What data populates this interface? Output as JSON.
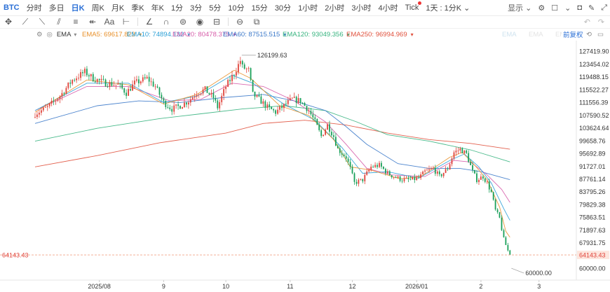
{
  "header": {
    "symbol": "BTC",
    "timeframes": [
      "分时",
      "多日",
      "日K",
      "周K",
      "月K",
      "季K",
      "年K",
      "1分",
      "3分",
      "5分",
      "10分",
      "15分",
      "30分",
      "1小时",
      "2小时",
      "3小时",
      "4小时",
      "Tick"
    ],
    "active_timeframe": "日K",
    "dot_timeframe": "Tick",
    "period_select": "1天 : 1分K",
    "display_label": "显示"
  },
  "indicator": {
    "name": "EMA",
    "items": [
      {
        "label": "EMA5: 69617.823",
        "color": "#e8902a"
      },
      {
        "label": "EMA10: 74894.132",
        "color": "#2a9fd6"
      },
      {
        "label": "EMA20: 80478.375",
        "color": "#d65aa8"
      },
      {
        "label": "EMA60: 87515.515",
        "color": "#3a78c9"
      },
      {
        "label": "EMA120: 93049.356",
        "color": "#35b37e"
      },
      {
        "label": "EMA250: 96994.969",
        "color": "#e0503c"
      }
    ],
    "faded": [
      "EMA",
      "EMA",
      "EMA"
    ],
    "adjust_label": "前复权"
  },
  "chart_data": {
    "type": "candlestick",
    "title": "",
    "y_ticks": [
      127419.9,
      123454.02,
      119488.15,
      115522.27,
      111556.39,
      107590.52,
      103624.64,
      99658.76,
      95692.89,
      91727.01,
      87761.14,
      83795.26,
      79829.38,
      75863.51,
      71897.63,
      67931.75,
      64143.43,
      60000.0
    ],
    "ylim": [
      58500,
      130300
    ],
    "x_ticks": [
      "2025/08",
      "9",
      "10",
      "11",
      "12",
      "2026/01",
      "2",
      "3"
    ],
    "x_tick_days": [
      31,
      62,
      92,
      123,
      153,
      184,
      215,
      243
    ],
    "x_start": "2025-07-01",
    "x_end": "2026-03-19",
    "last_price": 64143.43,
    "high_label": "126199.63",
    "low_label": "60000.00",
    "up_color": "#e0433a",
    "down_color": "#1aa05a",
    "ema_colors": {
      "ema10": "#2a9fd6",
      "ema20": "#d65aa8",
      "ema60": "#3a78c9",
      "ema120": "#35b37e",
      "ema250": "#e0503c"
    },
    "close_path": [
      [
        0,
        108000
      ],
      [
        6,
        110000
      ],
      [
        12,
        113500
      ],
      [
        18,
        118500
      ],
      [
        24,
        121000
      ],
      [
        28,
        119000
      ],
      [
        34,
        117500
      ],
      [
        40,
        117000
      ],
      [
        44,
        114500
      ],
      [
        48,
        117500
      ],
      [
        54,
        119000
      ],
      [
        58,
        116500
      ],
      [
        62,
        111500
      ],
      [
        66,
        109500
      ],
      [
        70,
        110500
      ],
      [
        74,
        112000
      ],
      [
        78,
        114500
      ],
      [
        82,
        115500
      ],
      [
        86,
        113000
      ],
      [
        88,
        110000
      ],
      [
        92,
        116500
      ],
      [
        96,
        120500
      ],
      [
        99,
        124500
      ],
      [
        100,
        122500
      ],
      [
        103,
        121500
      ],
      [
        105,
        114000
      ],
      [
        108,
        112500
      ],
      [
        112,
        110000
      ],
      [
        116,
        108500
      ],
      [
        120,
        110500
      ],
      [
        124,
        112500
      ],
      [
        128,
        112000
      ],
      [
        130,
        110500
      ],
      [
        132,
        109000
      ],
      [
        135,
        105500
      ],
      [
        138,
        101000
      ],
      [
        141,
        104500
      ],
      [
        144,
        101000
      ],
      [
        146,
        97000
      ],
      [
        150,
        94500
      ],
      [
        152,
        91000
      ],
      [
        154,
        86500
      ],
      [
        158,
        87500
      ],
      [
        162,
        91500
      ],
      [
        166,
        92000
      ],
      [
        170,
        89500
      ],
      [
        173,
        88500
      ],
      [
        177,
        87500
      ],
      [
        181,
        87500
      ],
      [
        185,
        88000
      ],
      [
        188,
        90000
      ],
      [
        192,
        91000
      ],
      [
        195,
        88500
      ],
      [
        199,
        91000
      ],
      [
        202,
        96000
      ],
      [
        205,
        97000
      ],
      [
        208,
        95500
      ],
      [
        211,
        90000
      ],
      [
        213,
        87500
      ],
      [
        216,
        88500
      ],
      [
        218,
        86500
      ],
      [
        220,
        83500
      ],
      [
        222,
        78000
      ],
      [
        224,
        75500
      ],
      [
        226,
        69000
      ],
      [
        228,
        65500
      ],
      [
        229,
        64143
      ]
    ],
    "ema_paths": {
      "ema250": [
        [
          0,
          91500
        ],
        [
          30,
          95000
        ],
        [
          60,
          99000
        ],
        [
          92,
          102000
        ],
        [
          110,
          105000
        ],
        [
          130,
          106000
        ],
        [
          150,
          104500
        ],
        [
          170,
          102000
        ],
        [
          190,
          100000
        ],
        [
          210,
          98800
        ],
        [
          229,
          96995
        ]
      ],
      "ema120": [
        [
          0,
          99500
        ],
        [
          30,
          103500
        ],
        [
          60,
          106500
        ],
        [
          80,
          108000
        ],
        [
          100,
          109500
        ],
        [
          120,
          110500
        ],
        [
          140,
          109000
        ],
        [
          155,
          105500
        ],
        [
          170,
          101500
        ],
        [
          190,
          99500
        ],
        [
          210,
          96800
        ],
        [
          229,
          93049
        ]
      ],
      "ema60": [
        [
          0,
          105000
        ],
        [
          30,
          110500
        ],
        [
          50,
          112000
        ],
        [
          70,
          111500
        ],
        [
          90,
          113000
        ],
        [
          110,
          114000
        ],
        [
          125,
          112000
        ],
        [
          140,
          109000
        ],
        [
          150,
          104000
        ],
        [
          160,
          98500
        ],
        [
          175,
          92500
        ],
        [
          190,
          91000
        ],
        [
          205,
          91000
        ],
        [
          215,
          90000
        ],
        [
          229,
          87516
        ]
      ],
      "ema20": [
        [
          0,
          109000
        ],
        [
          25,
          116500
        ],
        [
          45,
          116500
        ],
        [
          65,
          112000
        ],
        [
          80,
          112500
        ],
        [
          95,
          117500
        ],
        [
          110,
          116500
        ],
        [
          125,
          112000
        ],
        [
          140,
          105500
        ],
        [
          150,
          98500
        ],
        [
          160,
          91000
        ],
        [
          172,
          89000
        ],
        [
          188,
          88500
        ],
        [
          202,
          93500
        ],
        [
          210,
          93000
        ],
        [
          218,
          89000
        ],
        [
          225,
          84500
        ],
        [
          229,
          80478
        ]
      ],
      "ema10": [
        [
          0,
          109000
        ],
        [
          25,
          117500
        ],
        [
          45,
          117500
        ],
        [
          62,
          111500
        ],
        [
          78,
          113500
        ],
        [
          95,
          120000
        ],
        [
          105,
          117500
        ],
        [
          120,
          111000
        ],
        [
          135,
          106000
        ],
        [
          148,
          97500
        ],
        [
          158,
          89500
        ],
        [
          170,
          90000
        ],
        [
          185,
          88000
        ],
        [
          200,
          93500
        ],
        [
          207,
          95500
        ],
        [
          214,
          91500
        ],
        [
          220,
          86500
        ],
        [
          226,
          78500
        ],
        [
          229,
          74894
        ]
      ],
      "ema5": [
        [
          0,
          108500
        ],
        [
          25,
          118500
        ],
        [
          45,
          117000
        ],
        [
          62,
          111000
        ],
        [
          78,
          114000
        ],
        [
          96,
          121500
        ],
        [
          104,
          119000
        ],
        [
          118,
          110500
        ],
        [
          132,
          107500
        ],
        [
          144,
          100000
        ],
        [
          152,
          91500
        ],
        [
          162,
          90500
        ],
        [
          176,
          87800
        ],
        [
          186,
          88500
        ],
        [
          200,
          94500
        ],
        [
          206,
          96000
        ],
        [
          212,
          92000
        ],
        [
          218,
          87500
        ],
        [
          224,
          79000
        ],
        [
          227,
          71500
        ],
        [
          229,
          69618
        ]
      ]
    }
  }
}
